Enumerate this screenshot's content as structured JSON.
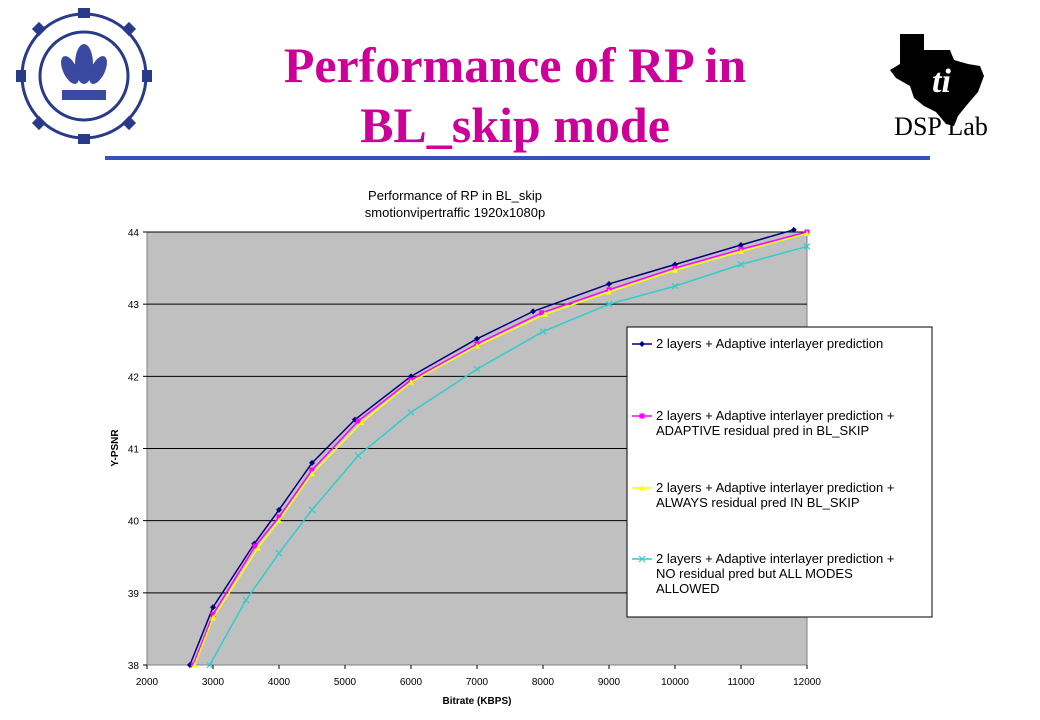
{
  "slide": {
    "title_line1": "Performance of RP in",
    "title_line2": "BL_skip mode",
    "right_logo_label": "DSP Lab"
  },
  "colors": {
    "title": "#cc0099",
    "rule": "#3355bb",
    "plot_background": "#c0c0c0"
  },
  "icons": {
    "left_logo": "iit-bombay-seal-icon",
    "right_logo": "ti-texas-logo-icon"
  },
  "chart_data": {
    "type": "line",
    "title": "Performance of RP in BL_skip",
    "subtitle": "smotionvipertraffic 1920x1080p",
    "xlabel": "Bitrate (KBPS)",
    "ylabel": "Y-PSNR",
    "xlim": [
      2000,
      12000
    ],
    "ylim": [
      38,
      44
    ],
    "xticks": [
      2000,
      3000,
      4000,
      5000,
      6000,
      7000,
      8000,
      9000,
      10000,
      11000,
      12000
    ],
    "yticks": [
      38,
      39,
      40,
      41,
      42,
      43,
      44
    ],
    "grid": "horizontal",
    "legend_position": "right",
    "series": [
      {
        "name": "2 layers + Adaptive interlayer prediction",
        "color": "#000080",
        "marker": "diamond",
        "x": [
          2650,
          3000,
          3625,
          4000,
          4500,
          5150,
          6000,
          7000,
          7850,
          9000,
          10000,
          11000,
          11800
        ],
        "y": [
          38.0,
          38.8,
          39.68,
          40.15,
          40.8,
          41.4,
          42.0,
          42.52,
          42.9,
          43.28,
          43.55,
          43.82,
          44.03
        ]
      },
      {
        "name": "2 layers + Adaptive interlayer prediction + ADAPTIVE residual pred in BL_SKIP",
        "color": "#ff00ff",
        "marker": "square",
        "x": [
          2700,
          3000,
          3640,
          4000,
          4500,
          5200,
          6000,
          7000,
          7980,
          9000,
          10000,
          11000,
          12000
        ],
        "y": [
          38.0,
          38.7,
          39.65,
          40.05,
          40.7,
          41.38,
          41.95,
          42.45,
          42.88,
          43.2,
          43.5,
          43.76,
          44.0
        ]
      },
      {
        "name": "2 layers + Adaptive interlayer prediction + ALWAYS residual pred IN BL_SKIP",
        "color": "#ffff00",
        "marker": "triangle",
        "x": [
          2720,
          3000,
          3680,
          4000,
          4500,
          5250,
          6000,
          7000,
          8030,
          9000,
          10000,
          11000,
          12000
        ],
        "y": [
          38.0,
          38.65,
          39.62,
          40.0,
          40.65,
          41.36,
          41.92,
          42.42,
          42.86,
          43.17,
          43.47,
          43.73,
          43.98
        ]
      },
      {
        "name": "2 layers + Adaptive interlayer prediction + NO residual pred but ALL MODES ALLOWED",
        "color": "#33cccc",
        "marker": "x",
        "x": [
          2950,
          3500,
          4000,
          4500,
          5200,
          6000,
          7000,
          8000,
          9000,
          10000,
          11000,
          12000
        ],
        "y": [
          38.0,
          38.9,
          39.55,
          40.15,
          40.9,
          41.5,
          42.1,
          42.62,
          43.0,
          43.25,
          43.55,
          43.8
        ]
      }
    ]
  }
}
